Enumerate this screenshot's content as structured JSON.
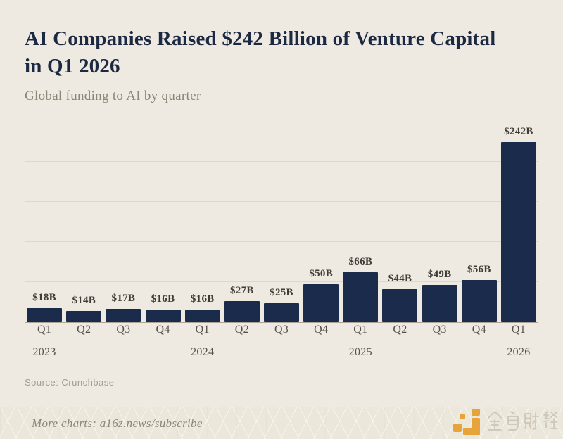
{
  "page": {
    "title": "AI Companies Raised $242 Billion of Venture Capital in Q1 2026",
    "subtitle": "Global funding to AI by quarter",
    "source": "Source: Crunchbase",
    "footer_text": "More charts: a16z.news/subscribe",
    "watermark_text": "金色财经"
  },
  "colors": {
    "background": "#EFEAE1",
    "bar": "#1B2B4C",
    "title": "#1C2942",
    "gridline": "#DED8CA",
    "baseline": "#AAA396",
    "watermark_orange": "#E6A132"
  },
  "chart_data": {
    "type": "bar",
    "title": "AI Companies Raised $242 Billion of Venture Capital in Q1 2026",
    "subtitle": "Global funding to AI by quarter",
    "source": "Source: Crunchbase",
    "categories": [
      "Q1 2023",
      "Q2 2023",
      "Q3 2023",
      "Q4 2023",
      "Q1 2024",
      "Q2 2024",
      "Q3 2024",
      "Q4 2024",
      "Q1 2025",
      "Q2 2025",
      "Q3 2025",
      "Q4 2025",
      "Q1 2026"
    ],
    "quarter_labels": [
      "Q1",
      "Q2",
      "Q3",
      "Q4",
      "Q1",
      "Q2",
      "Q3",
      "Q4",
      "Q1",
      "Q2",
      "Q3",
      "Q4",
      "Q1"
    ],
    "year_labels": [
      "2023",
      "",
      "",
      "",
      "2024",
      "",
      "",
      "",
      "2025",
      "",
      "",
      "",
      "2026"
    ],
    "values": [
      18,
      14,
      17,
      16,
      16,
      27,
      25,
      50,
      66,
      44,
      49,
      56,
      242
    ],
    "value_labels": [
      "$18B",
      "$14B",
      "$17B",
      "$16B",
      "$16B",
      "$27B",
      "$25B",
      "$50B",
      "$66B",
      "$44B",
      "$49B",
      "$56B",
      "$242B"
    ],
    "xlabel": "",
    "ylabel": "",
    "ylim": [
      0,
      270
    ],
    "grid": true,
    "gridline_count": 4,
    "legend": false,
    "unit": "USD billions"
  }
}
